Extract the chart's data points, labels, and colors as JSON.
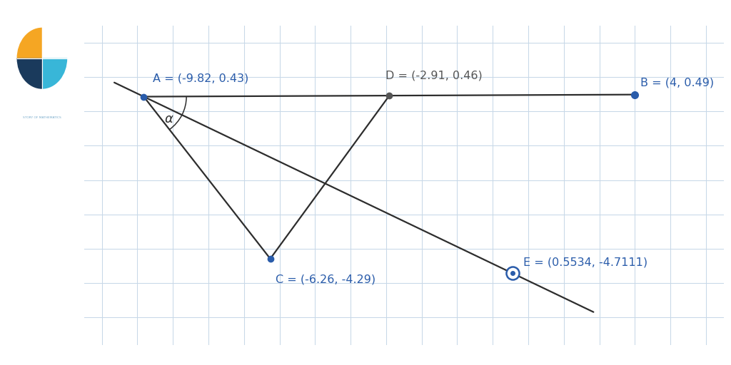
{
  "background_color": "white",
  "grid_color": "#c8d8e8",
  "points": {
    "A": [
      -9.82,
      0.43
    ],
    "B": [
      4.0,
      0.49
    ],
    "C": [
      -6.26,
      -4.29
    ],
    "D": [
      -2.91,
      0.46
    ],
    "E": [
      0.5534,
      -4.7111
    ]
  },
  "point_colors": {
    "A": "#2a5caa",
    "B": "#2a5caa",
    "C": "#2a5caa",
    "D": "#555555",
    "E": "#2a5caa"
  },
  "line_color": "#2d2d2d",
  "text_color": "#2a5caa",
  "label_color_dark": "#555555",
  "labels": {
    "A": "A = (-9.82, 0.43)",
    "B": "B = (4, 0.49)",
    "C": "C = (-6.26, -4.29)",
    "D": "D = (-2.91, 0.46)",
    "E": "E = (0.5534, -4.7111)"
  },
  "xlim": [
    -11.5,
    6.5
  ],
  "ylim": [
    -6.8,
    2.5
  ],
  "figsize": [
    10.24,
    5.12
  ],
  "dpi": 100,
  "stripe_color": "#38b6d8",
  "logo_bg": "#1a3a5c",
  "orange_color": "#f5a623",
  "alpha_label": "α",
  "bisector_t_start": -0.08,
  "bisector_t_end": 1.22
}
